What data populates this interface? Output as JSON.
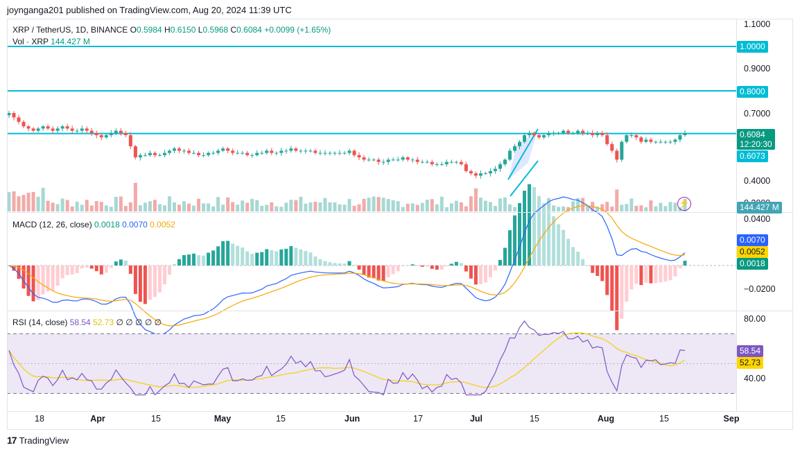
{
  "published": "joynganga201 published on TradingView.com, Aug 20, 2024 11:39 UTC",
  "header": {
    "symbol": "XRP / TetherUS, 1D, BINANCE",
    "o_label": "O",
    "o": "0.5984",
    "h_label": "H",
    "h": "0.6150",
    "l_label": "L",
    "l": "0.5968",
    "c_label": "C",
    "c": "0.6084",
    "change": "+0.0099 (+1.65%)",
    "vol_label": "Vol · XRP",
    "vol": "144.427 M"
  },
  "macd_legend": {
    "label": "MACD (12, 26, close)",
    "hist": "0.0018",
    "macd": "0.0070",
    "signal": "0.0052"
  },
  "rsi_legend": {
    "label": "RSI (14, close)",
    "rsi": "58.54",
    "ma": "52.73",
    "extra": "∅ ∅ ∅ ∅ ∅"
  },
  "price_axis": [
    "1.1000",
    "0.9000",
    "0.7000",
    "0.4000"
  ],
  "price_axis_partial": "0.3000",
  "macd_axis": [
    "0.0400",
    "−0.0200"
  ],
  "rsi_axis": [
    "80.00",
    "40.00"
  ],
  "tags": {
    "level_1": "1.0000",
    "level_08": "0.8000",
    "last_price": "0.6084",
    "countdown": "12:20:30",
    "level_06": "0.6073",
    "volume": "144.427 M",
    "macd": "0.0070",
    "signal": "0.0052",
    "hist": "0.0018",
    "rsi": "58.54",
    "rsi_ma": "52.73"
  },
  "time_axis": [
    {
      "label": "18",
      "bold": false
    },
    {
      "label": "Apr",
      "bold": true
    },
    {
      "label": "15",
      "bold": false
    },
    {
      "label": "May",
      "bold": true
    },
    {
      "label": "15",
      "bold": false
    },
    {
      "label": "Jun",
      "bold": true
    },
    {
      "label": "17",
      "bold": false
    },
    {
      "label": "Jul",
      "bold": true
    },
    {
      "label": "15",
      "bold": false
    },
    {
      "label": "Aug",
      "bold": true
    },
    {
      "label": "15",
      "bold": false
    },
    {
      "label": "Sep",
      "bold": true
    }
  ],
  "footer": "TradingView",
  "colors": {
    "up": "#26a69a",
    "down": "#ef5350",
    "level": "#00bcd4",
    "macd": "#2962ff",
    "signal": "#f7a600",
    "rsi": "#7e57c2",
    "rsi_ma": "#f7d000",
    "rsi_band": "#ede7f6"
  },
  "chart_data": {
    "type": "candlestick",
    "symbol": "XRP / TetherUS, 1D, BINANCE",
    "x_range": [
      "Mar 11, 2024",
      "Aug 20, 2024"
    ],
    "price_close": [
      0.7,
      0.68,
      0.66,
      0.64,
      0.63,
      0.62,
      0.63,
      0.64,
      0.63,
      0.62,
      0.63,
      0.64,
      0.63,
      0.62,
      0.62,
      0.63,
      0.62,
      0.61,
      0.6,
      0.59,
      0.6,
      0.61,
      0.62,
      0.61,
      0.6,
      0.55,
      0.5,
      0.51,
      0.51,
      0.52,
      0.51,
      0.51,
      0.52,
      0.53,
      0.54,
      0.53,
      0.53,
      0.52,
      0.52,
      0.51,
      0.51,
      0.52,
      0.52,
      0.53,
      0.54,
      0.53,
      0.52,
      0.52,
      0.52,
      0.51,
      0.51,
      0.52,
      0.52,
      0.53,
      0.52,
      0.52,
      0.53,
      0.53,
      0.54,
      0.53,
      0.53,
      0.53,
      0.53,
      0.52,
      0.52,
      0.52,
      0.52,
      0.52,
      0.52,
      0.52,
      0.53,
      0.51,
      0.5,
      0.49,
      0.49,
      0.49,
      0.48,
      0.48,
      0.49,
      0.49,
      0.49,
      0.5,
      0.49,
      0.49,
      0.48,
      0.48,
      0.48,
      0.47,
      0.47,
      0.47,
      0.48,
      0.48,
      0.48,
      0.47,
      0.44,
      0.43,
      0.42,
      0.43,
      0.43,
      0.44,
      0.45,
      0.47,
      0.49,
      0.53,
      0.55,
      0.57,
      0.6,
      0.61,
      0.6,
      0.59,
      0.6,
      0.61,
      0.61,
      0.61,
      0.62,
      0.61,
      0.61,
      0.62,
      0.61,
      0.61,
      0.6,
      0.61,
      0.6,
      0.56,
      0.53,
      0.49,
      0.57,
      0.6,
      0.6,
      0.59,
      0.57,
      0.58,
      0.57,
      0.57,
      0.57,
      0.57,
      0.57,
      0.58,
      0.6,
      0.61
    ],
    "levels": [
      1.0,
      0.8,
      0.6073
    ],
    "ylim": [
      0.3,
      1.12
    ],
    "macd": {
      "macd": 0.007,
      "signal": 0.0052,
      "hist": 0.0018,
      "ylim": [
        -0.03,
        0.045
      ]
    },
    "rsi": {
      "rsi": 58.54,
      "ma": 52.73,
      "upper_band": 70,
      "lower_band": 30,
      "ylim": [
        25,
        85
      ]
    }
  }
}
